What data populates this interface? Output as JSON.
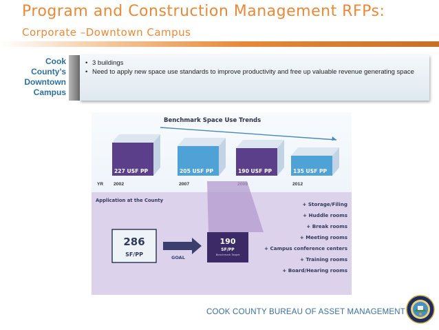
{
  "header": {
    "title": "Program and Construction Management RFPs:",
    "subtitle": "Corporate –Downtown Campus"
  },
  "side_label": {
    "lines": [
      "Cook",
      "County’s",
      "Downtown",
      "Campus"
    ]
  },
  "bullets": [
    "3 buildings",
    "Need to apply new space use standards to improve productivity and free up valuable revenue generating space"
  ],
  "figure": {
    "title": "Benchmark Space Use Trends",
    "yr_label": "YR",
    "bars": [
      {
        "label": "227 USF PP",
        "year": "2002",
        "value": 227,
        "color": "#5b3f8a"
      },
      {
        "label": "205 USF PP",
        "year": "2007",
        "value": 205,
        "color": "#4ea2d6"
      },
      {
        "label": "190 USF PP",
        "year": "2009",
        "value": 190,
        "color": "#5b3f8a"
      },
      {
        "label": "135 USF PP",
        "year": "2012",
        "value": 135,
        "color": "#4ea2d6"
      }
    ],
    "application_title": "Application at the County",
    "current_value": "286",
    "current_unit": "SF/PP",
    "goal_label": "GOAL",
    "target_value": "190",
    "target_unit": "SF/PP",
    "target_note": "Benchmark Target",
    "space_items": [
      "+ Storage/Filing",
      "+ Huddle rooms",
      "+ Break rooms",
      "+ Meeting rooms",
      "+ Campus conference centers",
      "+ Training rooms",
      "+ Board/Hearing rooms"
    ]
  },
  "footer": {
    "text": "COOK COUNTY BUREAU OF ASSET MANAGEMENT"
  }
}
